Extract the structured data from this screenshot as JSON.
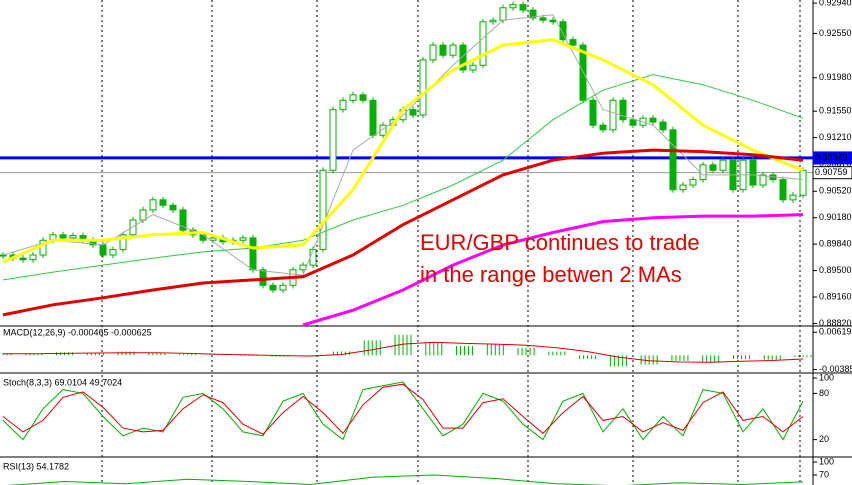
{
  "chart_data": [
    {
      "type": "candlestick",
      "annotations": [
        "EUR/GBP continues to trade",
        "in the range betwen 2 MAs"
      ],
      "values": [
        0.897,
        0.8966,
        0.8964,
        0.897,
        0.8989,
        0.8996,
        0.8992,
        0.8995,
        0.8989,
        0.8983,
        0.897,
        0.8977,
        0.8996,
        0.9015,
        0.9028,
        0.9041,
        0.9034,
        0.9028,
        0.9002,
        0.8996,
        0.8989,
        0.8992,
        0.8987,
        0.8989,
        0.8992,
        0.8951,
        0.8931,
        0.8925,
        0.8931,
        0.8951,
        0.8957,
        0.8977,
        0.9079,
        0.9157,
        0.9169,
        0.9176,
        0.9169,
        0.9124,
        0.9137,
        0.9144,
        0.9157,
        0.915,
        0.9221,
        0.924,
        0.9227,
        0.924,
        0.9208,
        0.9214,
        0.927,
        0.9272,
        0.9288,
        0.9292,
        0.9285,
        0.9275,
        0.9272,
        0.927,
        0.9247,
        0.924,
        0.9169,
        0.9137,
        0.9131,
        0.9169,
        0.9144,
        0.9137,
        0.9146,
        0.9141,
        0.9131,
        0.9054,
        0.906,
        0.9067,
        0.9086,
        0.9079,
        0.9092,
        0.9054,
        0.9092,
        0.906,
        0.9073,
        0.9067,
        0.9041,
        0.9047,
        0.9079
      ],
      "color": "#00b000",
      "series": [
        {
          "name": null,
          "color": "#aaaaaa",
          "values": [
            0.897,
            0.8989,
            0.8983,
            0.9022,
            0.8996,
            0.8951,
            0.8944,
            0.9105,
            0.915,
            0.9214,
            0.9272,
            0.9279,
            0.9157,
            0.9137,
            0.9073,
            0.9073,
            0.9067
          ]
        },
        {
          "name": null,
          "color": "#2ecc40",
          "values": [
            0.8938,
            0.8948,
            0.8957,
            0.8966,
            0.8974,
            0.8979,
            0.8989,
            0.9015,
            0.9034,
            0.906,
            0.9092,
            0.9144,
            0.9182,
            0.9202,
            0.9189,
            0.9169,
            0.9146
          ]
        },
        {
          "name": null,
          "color": "#ffff00",
          "values": [
            0.8961,
            0.8989,
            0.8989,
            0.8996,
            0.8999,
            0.8979,
            0.8983,
            0.9054,
            0.9157,
            0.9208,
            0.924,
            0.9247,
            0.9221,
            0.9189,
            0.9137,
            0.9105,
            0.9079
          ]
        },
        {
          "name": null,
          "color": "#e00000",
          "values": [
            0.8893,
            0.8906,
            0.8915,
            0.8925,
            0.8934,
            0.8938,
            0.8942,
            0.897,
            0.9009,
            0.9041,
            0.9073,
            0.9092,
            0.9101,
            0.9105,
            0.9103,
            0.9099,
            0.9092
          ]
        },
        {
          "name": null,
          "color": "#ff00ff",
          "values": [
            null,
            null,
            null,
            null,
            null,
            null,
            0.888,
            0.8899,
            0.8925,
            0.8957,
            0.8983,
            0.8999,
            0.9013,
            0.9018,
            0.902,
            0.902,
            0.9022
          ]
        }
      ],
      "levels": [
        {
          "value": 0.90949,
          "color": "#0000ff"
        },
        {
          "value": 0.90759,
          "color": "#999999"
        }
      ],
      "ylim": [
        0.888,
        0.9298
      ],
      "yticks": [
        {
          "value": 0.9294,
          "label": "0.92940"
        },
        {
          "value": 0.9255,
          "label": "0.92550"
        },
        {
          "value": 0.9198,
          "label": "0.91980"
        },
        {
          "value": 0.9155,
          "label": "0.91550"
        },
        {
          "value": 0.9121,
          "label": "0.91210"
        },
        {
          "value": 0.9087,
          "label": "0.90870"
        },
        {
          "value": 0.9052,
          "label": "0.90520"
        },
        {
          "value": 0.9018,
          "label": "0.90180"
        },
        {
          "value": 0.8984,
          "label": "0.89840"
        },
        {
          "value": 0.895,
          "label": "0.89500"
        },
        {
          "value": 0.8916,
          "label": "0.89160"
        },
        {
          "value": 0.8882,
          "label": "0.88820"
        }
      ]
    },
    {
      "type": "bar",
      "title": "MACD(12,26,9) -0.000465 -0.000625",
      "series": [
        {
          "name": null,
          "type": "bar",
          "color": "#00b000",
          "values": [
            0.0005,
            0.0004,
            0.0008,
            0.0006,
            0.001,
            0.0006,
            0.0003,
            0.0002,
            -0.0002,
            -0.0004,
            -0.0003,
            0.001,
            0.004,
            0.0055,
            0.0035,
            0.0025,
            0.003,
            0.002,
            0.001,
            -0.001,
            -0.003,
            -0.0025,
            -0.0015,
            -0.002,
            -0.001,
            -0.0012,
            -0.0005
          ]
        },
        {
          "name": null,
          "type": "line",
          "color": "#e00000",
          "values": [
            0.0004,
            0.0004,
            0.0005,
            0.0006,
            0.0007,
            0.0007,
            0.0005,
            0.0003,
            0.0001,
            -0.0001,
            -0.0002,
            0.0002,
            0.0015,
            0.003,
            0.0035,
            0.0032,
            0.003,
            0.0027,
            0.002,
            0.001,
            -0.0005,
            -0.0015,
            -0.0018,
            -0.0019,
            -0.0016,
            -0.0014,
            -0.001
          ]
        }
      ],
      "ylim": [
        -0.0045,
        0.0068
      ],
      "yticks": [
        0.006198,
        -0.003857
      ]
    },
    {
      "type": "line",
      "title": "Stoch(8,3,3) 69.0104 49.7024",
      "series": [
        {
          "name": null,
          "color": "#00b000",
          "values": [
            45,
            20,
            60,
            85,
            80,
            50,
            25,
            35,
            30,
            75,
            80,
            60,
            30,
            25,
            70,
            80,
            40,
            20,
            85,
            90,
            95,
            60,
            25,
            40,
            80,
            70,
            40,
            20,
            70,
            80,
            30,
            60,
            20,
            50,
            25,
            85,
            80,
            30,
            60,
            20,
            70
          ]
        },
        {
          "name": null,
          "color": "#e00000",
          "values": [
            50,
            30,
            45,
            75,
            82,
            62,
            35,
            30,
            32,
            60,
            78,
            68,
            40,
            27,
            55,
            76,
            55,
            28,
            65,
            88,
            92,
            72,
            35,
            35,
            68,
            73,
            50,
            28,
            55,
            76,
            45,
            50,
            30,
            42,
            32,
            68,
            82,
            45,
            50,
            30,
            50
          ]
        }
      ],
      "ylim": [
        0,
        100
      ],
      "yticks": [
        100,
        80,
        20
      ]
    },
    {
      "type": "line",
      "title": "RSI(13) 54.1782",
      "series": [
        {
          "name": null,
          "color": "#00b000",
          "values": [
            45,
            55,
            50,
            60,
            55,
            48,
            65,
            70,
            62,
            50,
            45,
            52,
            48,
            54
          ]
        }
      ],
      "ylim": [
        40,
        100
      ],
      "yticks": [
        100,
        70
      ]
    }
  ]
}
